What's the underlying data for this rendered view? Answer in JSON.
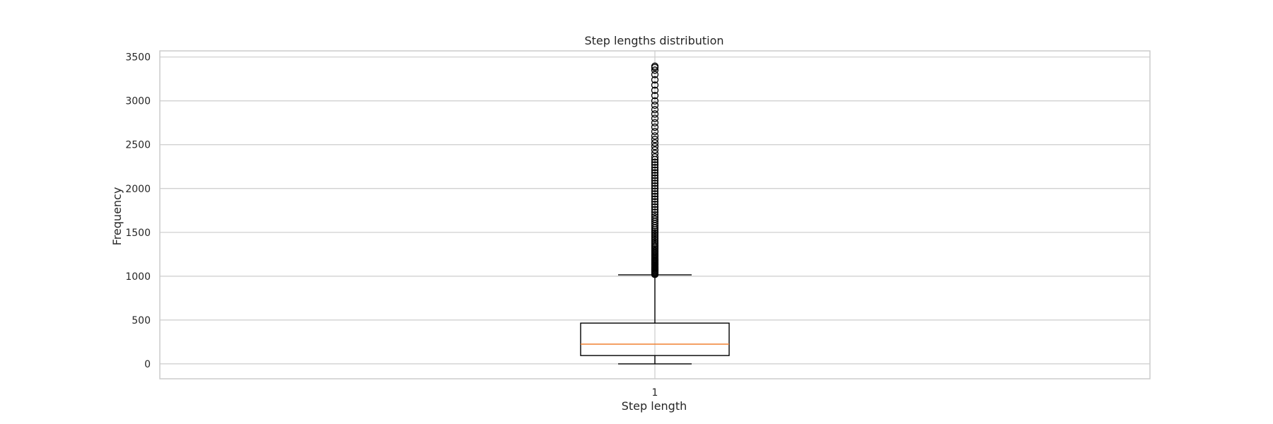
{
  "chart_data": {
    "type": "box",
    "title": "Step lengths distribution",
    "xlabel": "Step length",
    "ylabel": "Frequency",
    "categories": [
      "1"
    ],
    "ylim": [
      -170,
      3570
    ],
    "yticks": [
      0,
      500,
      1000,
      1500,
      2000,
      2500,
      3000,
      3500
    ],
    "grid": true,
    "box": {
      "whisker_low": 0,
      "q1": 95,
      "median": 225,
      "q3": 465,
      "whisker_high": 1015
    },
    "outliers": [
      1020,
      1030,
      1040,
      1050,
      1060,
      1070,
      1080,
      1090,
      1100,
      1110,
      1120,
      1130,
      1140,
      1150,
      1160,
      1170,
      1180,
      1190,
      1200,
      1215,
      1230,
      1245,
      1260,
      1275,
      1290,
      1305,
      1320,
      1335,
      1350,
      1370,
      1390,
      1410,
      1430,
      1450,
      1470,
      1490,
      1510,
      1530,
      1550,
      1575,
      1600,
      1625,
      1650,
      1675,
      1700,
      1730,
      1760,
      1790,
      1820,
      1850,
      1880,
      1910,
      1940,
      1970,
      2000,
      2030,
      2060,
      2090,
      2120,
      2150,
      2180,
      2210,
      2240,
      2270,
      2300,
      2330,
      2360,
      2400,
      2440,
      2480,
      2520,
      2560,
      2600,
      2650,
      2700,
      2750,
      2800,
      2850,
      2900,
      2950,
      3000,
      3060,
      3120,
      3180,
      3240,
      3300,
      3350,
      3380,
      3395
    ],
    "colors": {
      "box": "#000000",
      "median": "#f08030",
      "grid": "#cccccc",
      "spine": "#cccccc",
      "text": "#262626"
    }
  }
}
